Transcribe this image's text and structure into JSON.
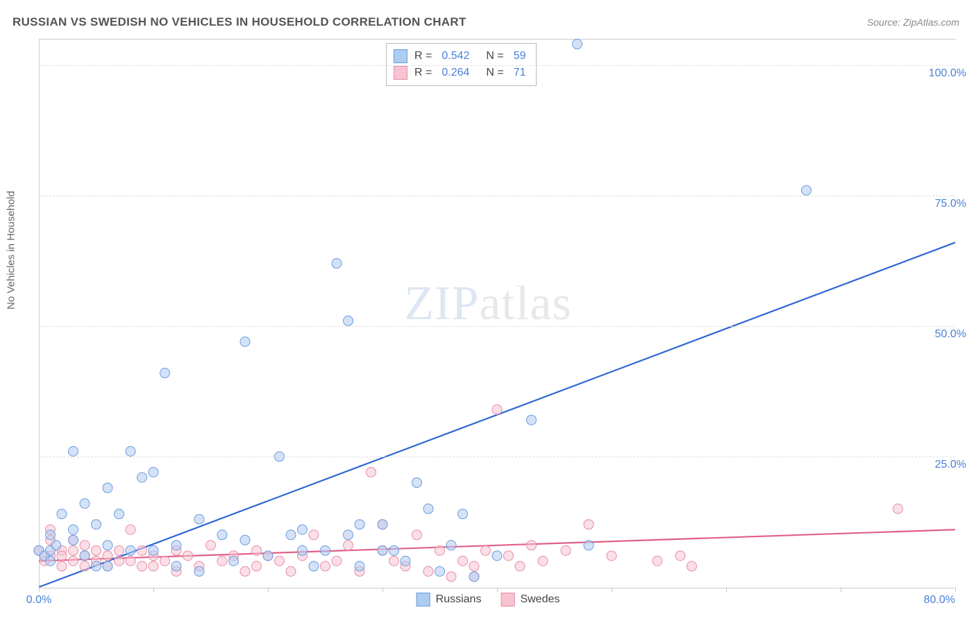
{
  "title": "RUSSIAN VS SWEDISH NO VEHICLES IN HOUSEHOLD CORRELATION CHART",
  "source": "Source: ZipAtlas.com",
  "ylabel": "No Vehicles in Household",
  "watermark_a": "ZIP",
  "watermark_b": "atlas",
  "chart": {
    "type": "scatter",
    "xlim": [
      0,
      80
    ],
    "ylim": [
      0,
      105
    ],
    "y_ticks": [
      25,
      50,
      75,
      100
    ],
    "y_tick_labels": [
      "25.0%",
      "50.0%",
      "75.0%",
      "100.0%"
    ],
    "x_ticks": [
      0,
      10,
      20,
      30,
      40,
      50,
      60,
      70,
      80
    ],
    "x_min_label": "0.0%",
    "x_max_label": "80.0%",
    "background_color": "#ffffff",
    "grid_color": "#dddddd",
    "border_color": "#cccccc",
    "series": [
      {
        "name": "Russians",
        "color_fill": "#aecbf0",
        "color_stroke": "#6a9be0",
        "line_color": "#2f66d4",
        "marker_radius": 7,
        "fill_opacity": 0.55,
        "R": "0.542",
        "N": "59",
        "trend": {
          "x1": 0,
          "y1": 0,
          "x2": 80,
          "y2": 66
        },
        "points": [
          [
            0,
            7
          ],
          [
            0.5,
            6
          ],
          [
            1,
            5
          ],
          [
            1,
            7
          ],
          [
            1,
            10
          ],
          [
            1.5,
            8
          ],
          [
            2,
            14
          ],
          [
            3,
            26
          ],
          [
            3,
            9
          ],
          [
            4,
            16
          ],
          [
            5,
            12
          ],
          [
            6,
            4
          ],
          [
            6,
            19
          ],
          [
            7,
            14
          ],
          [
            8,
            26
          ],
          [
            8,
            7
          ],
          [
            9,
            21
          ],
          [
            10,
            22
          ],
          [
            10,
            7
          ],
          [
            11,
            41
          ],
          [
            12,
            8
          ],
          [
            12,
            4
          ],
          [
            14,
            3
          ],
          [
            14,
            13
          ],
          [
            16,
            10
          ],
          [
            17,
            5
          ],
          [
            18,
            9
          ],
          [
            18,
            47
          ],
          [
            20,
            6
          ],
          [
            21,
            25
          ],
          [
            22,
            10
          ],
          [
            23,
            7
          ],
          [
            23,
            11
          ],
          [
            24,
            4
          ],
          [
            25,
            7
          ],
          [
            26,
            62
          ],
          [
            27,
            10
          ],
          [
            27,
            51
          ],
          [
            28,
            4
          ],
          [
            28,
            12
          ],
          [
            30,
            7
          ],
          [
            30,
            12
          ],
          [
            31,
            7
          ],
          [
            32,
            5
          ],
          [
            33,
            20
          ],
          [
            34,
            15
          ],
          [
            35,
            3
          ],
          [
            36,
            8
          ],
          [
            37,
            14
          ],
          [
            38,
            2
          ],
          [
            40,
            6
          ],
          [
            43,
            32
          ],
          [
            47,
            104
          ],
          [
            48,
            8
          ],
          [
            67,
            76
          ],
          [
            3,
            11
          ],
          [
            4,
            6
          ],
          [
            5,
            4
          ],
          [
            6,
            8
          ]
        ]
      },
      {
        "name": "Swedes",
        "color_fill": "#f6c4d1",
        "color_stroke": "#e88ca6",
        "line_color": "#e06089",
        "marker_radius": 7,
        "fill_opacity": 0.55,
        "R": "0.264",
        "N": "71",
        "trend": {
          "x1": 0,
          "y1": 5,
          "x2": 80,
          "y2": 11
        },
        "points": [
          [
            0,
            7
          ],
          [
            0.5,
            5
          ],
          [
            1,
            6
          ],
          [
            1,
            9
          ],
          [
            2,
            7
          ],
          [
            2,
            4
          ],
          [
            3,
            9
          ],
          [
            3,
            5
          ],
          [
            4,
            6
          ],
          [
            4,
            8
          ],
          [
            5,
            5
          ],
          [
            5,
            7
          ],
          [
            6,
            4
          ],
          [
            7,
            7
          ],
          [
            8,
            11
          ],
          [
            8,
            5
          ],
          [
            9,
            4
          ],
          [
            10,
            6
          ],
          [
            11,
            5
          ],
          [
            12,
            7
          ],
          [
            12,
            3
          ],
          [
            13,
            6
          ],
          [
            14,
            4
          ],
          [
            15,
            8
          ],
          [
            16,
            5
          ],
          [
            17,
            6
          ],
          [
            18,
            3
          ],
          [
            19,
            7
          ],
          [
            19,
            4
          ],
          [
            20,
            6
          ],
          [
            21,
            5
          ],
          [
            22,
            3
          ],
          [
            23,
            6
          ],
          [
            24,
            10
          ],
          [
            25,
            4
          ],
          [
            26,
            5
          ],
          [
            27,
            8
          ],
          [
            28,
            3
          ],
          [
            29,
            22
          ],
          [
            30,
            12
          ],
          [
            30,
            7
          ],
          [
            31,
            5
          ],
          [
            32,
            4
          ],
          [
            33,
            10
          ],
          [
            34,
            3
          ],
          [
            35,
            7
          ],
          [
            36,
            2
          ],
          [
            37,
            5
          ],
          [
            38,
            4
          ],
          [
            38,
            2
          ],
          [
            39,
            7
          ],
          [
            40,
            34
          ],
          [
            41,
            6
          ],
          [
            42,
            4
          ],
          [
            43,
            8
          ],
          [
            44,
            5
          ],
          [
            46,
            7
          ],
          [
            48,
            12
          ],
          [
            50,
            6
          ],
          [
            54,
            5
          ],
          [
            56,
            6
          ],
          [
            57,
            4
          ],
          [
            75,
            15
          ],
          [
            1,
            11
          ],
          [
            2,
            6
          ],
          [
            3,
            7
          ],
          [
            4,
            4
          ],
          [
            6,
            6
          ],
          [
            7,
            5
          ],
          [
            9,
            7
          ],
          [
            10,
            4
          ]
        ]
      }
    ]
  },
  "legend": {
    "russians": "Russians",
    "swedes": "Swedes"
  },
  "stats_labels": {
    "R": "R =",
    "N": "N ="
  }
}
